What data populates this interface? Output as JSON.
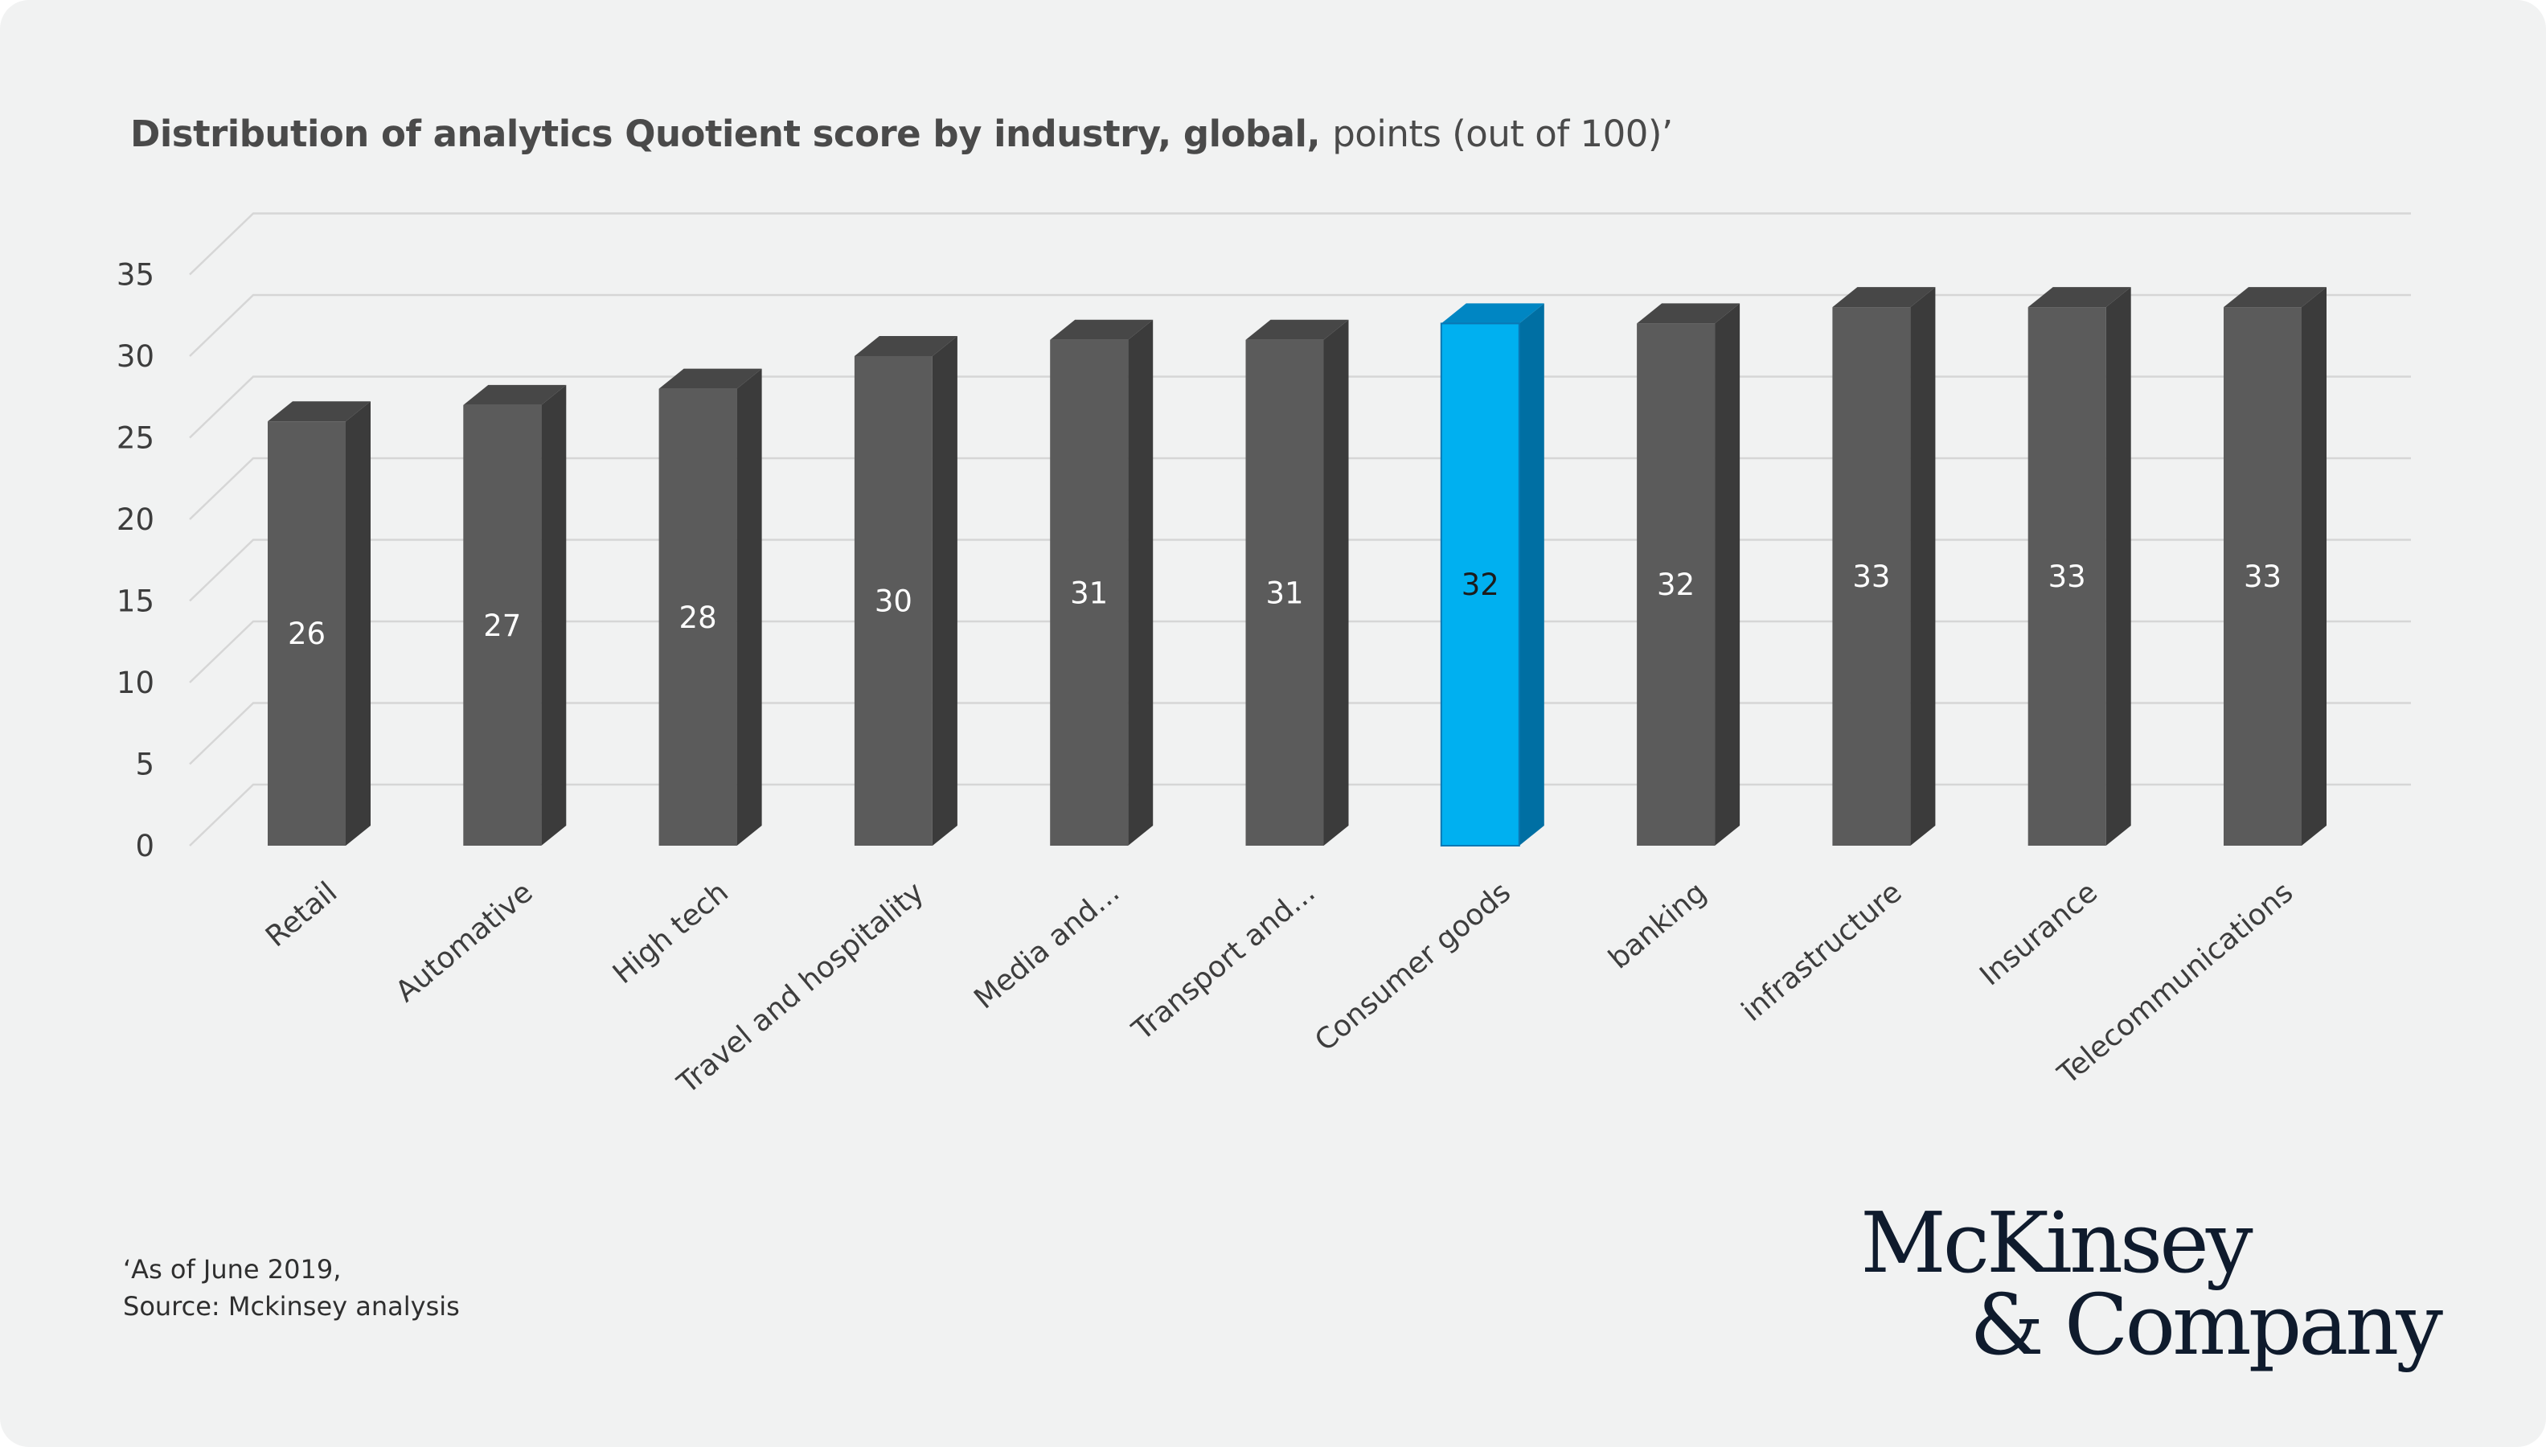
{
  "title": {
    "main": "Distribution of analytics Quotient score by industry, global,",
    "unit": "points (out of 100)’"
  },
  "chart_data": {
    "type": "bar",
    "style": "3d-column",
    "categories": [
      "Retail",
      "Automative",
      "High tech",
      "Travel and hospitality",
      "Media and...",
      "Transport and...",
      "Consumer goods",
      "banking",
      "infrastructure",
      "Insurance",
      "Telecommunications"
    ],
    "values": [
      26,
      27,
      28,
      30,
      31,
      31,
      32,
      32,
      33,
      33,
      33
    ],
    "ylim": [
      0,
      35
    ],
    "yticks": [
      0,
      5,
      10,
      15,
      20,
      25,
      30,
      35
    ],
    "grid": true,
    "legend": "none",
    "highlight_index": 6,
    "colors": {
      "bar_front": "#5b5b5b",
      "bar_side": "#3b3b3b",
      "bar_top": "#474747",
      "highlight_front": "#00b0f0",
      "highlight_side": "#006fa3",
      "highlight_top": "#0086c3",
      "label_on_dark": "#ffffff",
      "label_on_highlight": "#1c1c1c",
      "grid": "#d6d6d6"
    }
  },
  "footnote": {
    "line1": "‘As of June 2019,",
    "line2": "Source: Mckinsey analysis"
  },
  "brand": {
    "line1": "McKinsey",
    "line2": "& Company"
  }
}
